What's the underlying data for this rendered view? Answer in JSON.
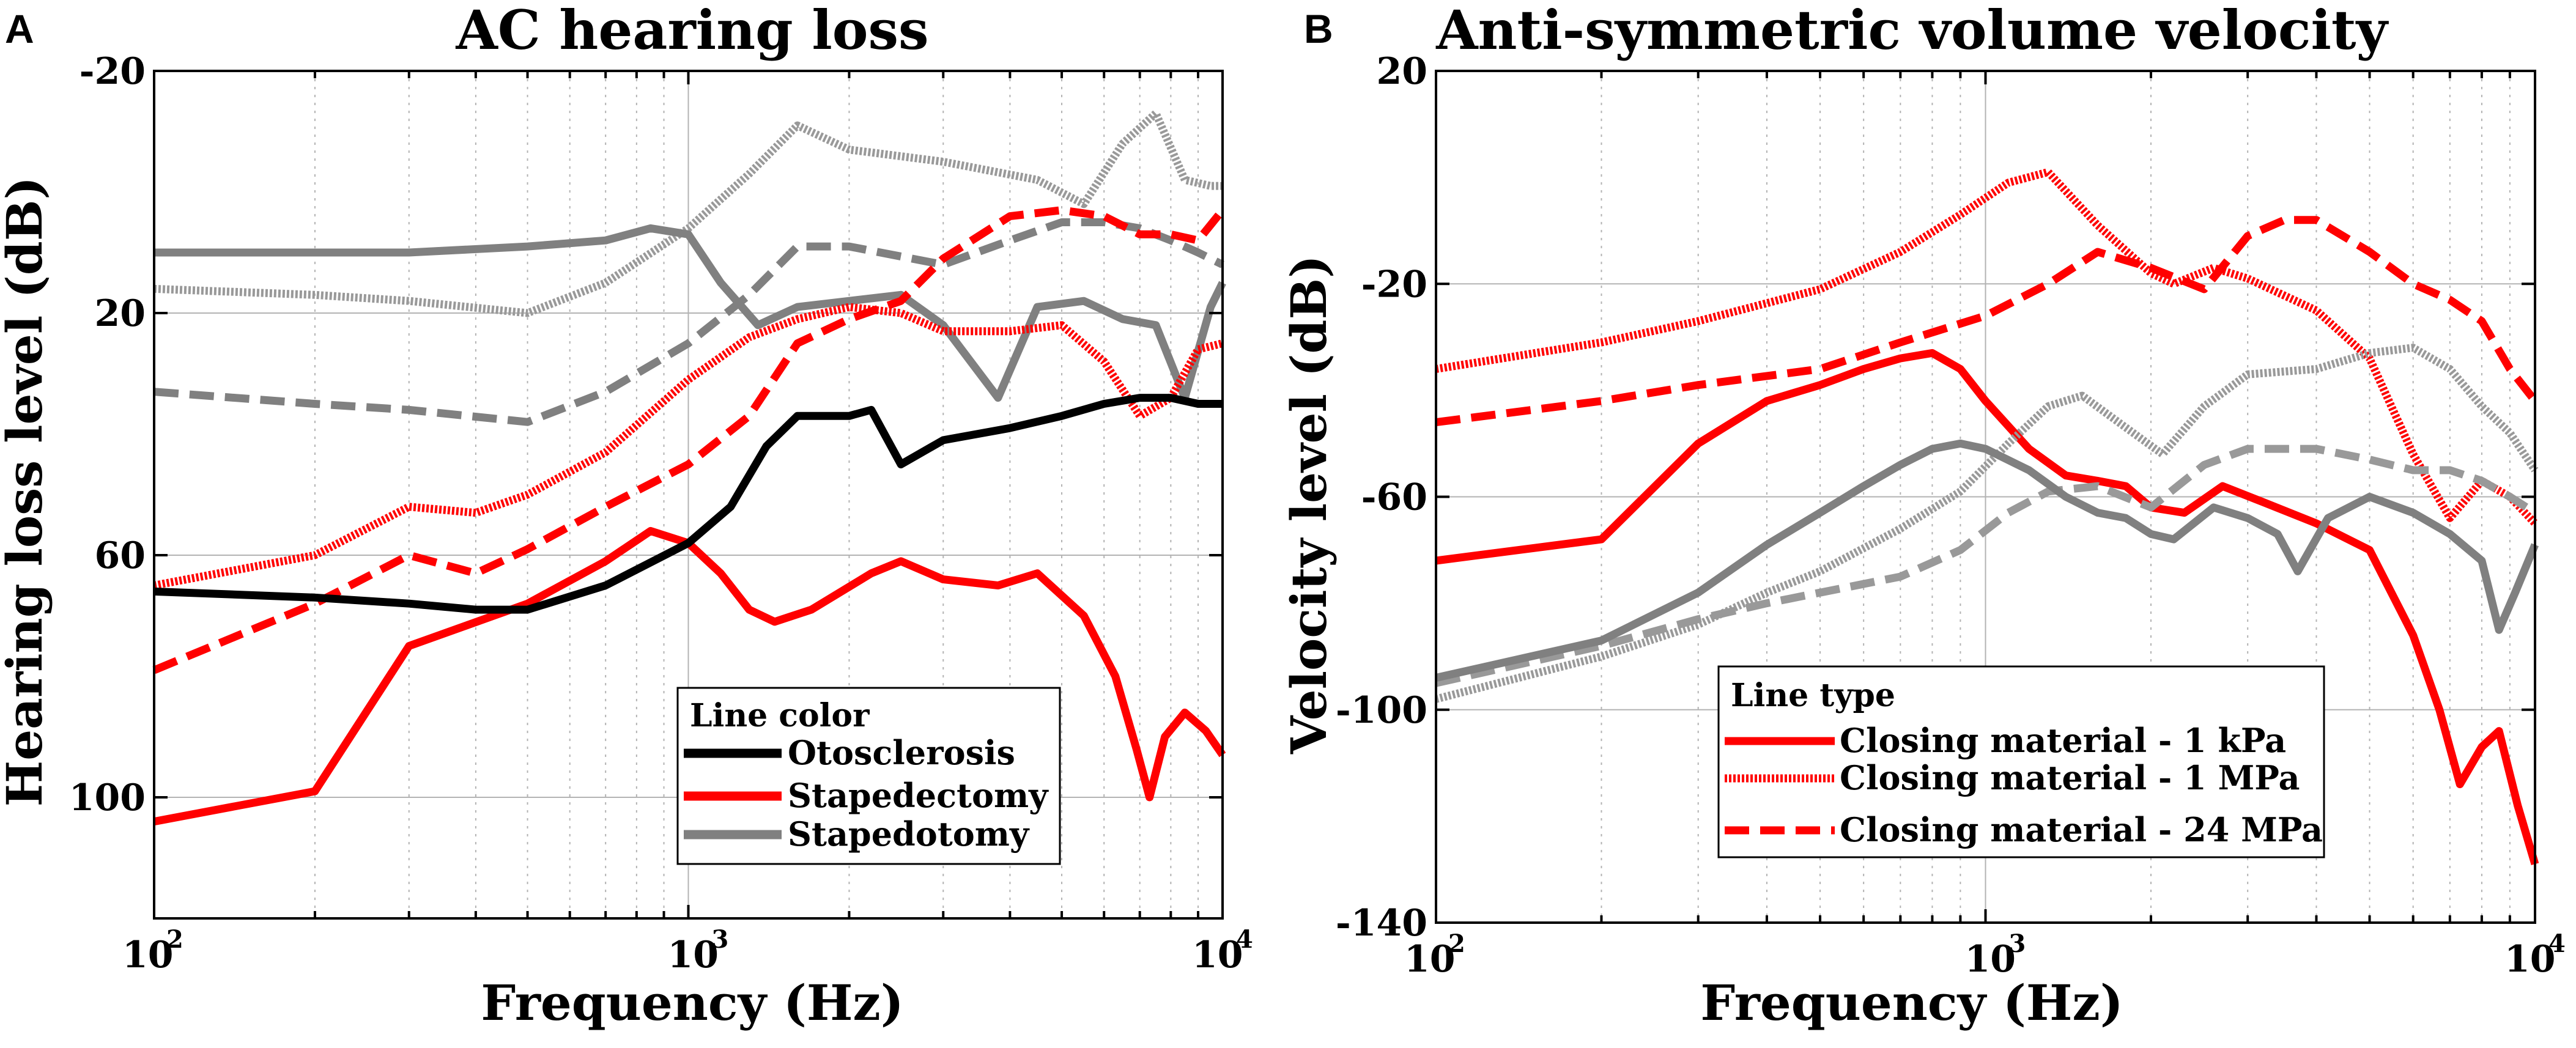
{
  "panels": [
    {
      "panel_label": "A",
      "chart_data": {
        "type": "line",
        "title": "AC hearing loss",
        "xlabel": "Frequency (Hz)",
        "ylabel": "Hearing loss level (dB)",
        "xscale": "log",
        "xlim": [
          100,
          10000
        ],
        "ylim": [
          -20,
          120
        ],
        "y_reversed": true,
        "yticks": [
          -20,
          20,
          60,
          100
        ],
        "xticks": [
          {
            "base": "10",
            "exp": "2",
            "value": 100
          },
          {
            "base": "10",
            "exp": "3",
            "value": 1000
          },
          {
            "base": "10",
            "exp": "4",
            "value": 10000
          }
        ],
        "legend": {
          "title": "Line color",
          "position": "lower-right",
          "entries": [
            {
              "label": "Otosclerosis",
              "color": "#000000",
              "style": "solid"
            },
            {
              "label": "Stapedectomy",
              "color": "#ff0000",
              "style": "solid"
            },
            {
              "label": "Stapedotomy",
              "color": "#808080",
              "style": "solid"
            }
          ]
        },
        "series": [
          {
            "name": "Stapedotomy dotted",
            "color": "#999999",
            "style": "dotted",
            "x": [
              100,
              200,
              300,
              500,
              700,
              1000,
              1300,
              1600,
              2000,
              3000,
              4500,
              5500,
              6500,
              7500,
              8500,
              9500,
              10000
            ],
            "y": [
              16,
              17,
              18,
              20,
              15,
              6,
              -3,
              -11,
              -7,
              -5,
              -2,
              2,
              -8,
              -13,
              -2,
              -1,
              -1
            ]
          },
          {
            "name": "Stapedotomy dashed",
            "color": "#808080",
            "style": "dashed",
            "x": [
              100,
              200,
              300,
              500,
              700,
              1000,
              1300,
              1600,
              2000,
              3000,
              4000,
              5000,
              6000,
              7000,
              8000,
              9000,
              10000
            ],
            "y": [
              33,
              35,
              36,
              38,
              33,
              25,
              17,
              9,
              9,
              12,
              8,
              5,
              5,
              6,
              8,
              10,
              12
            ]
          },
          {
            "name": "Stapedotomy solid",
            "color": "#808080",
            "style": "solid",
            "x": [
              100,
              200,
              300,
              500,
              700,
              850,
              1000,
              1150,
              1350,
              1600,
              2000,
              2500,
              3000,
              3800,
              4500,
              5500,
              6500,
              7500,
              8500,
              9500,
              10000
            ],
            "y": [
              10,
              10,
              10,
              9,
              8,
              6,
              7,
              15,
              22,
              19,
              18,
              17,
              22,
              34,
              19,
              18,
              21,
              22,
              34,
              19,
              15
            ]
          },
          {
            "name": "Stapedectomy dotted",
            "color": "#ff0000",
            "style": "dotted",
            "x": [
              100,
              200,
              300,
              400,
              500,
              700,
              1000,
              1300,
              1600,
              2000,
              2500,
              3000,
              4000,
              5000,
              6000,
              7000,
              8000,
              9000,
              10000
            ],
            "y": [
              65,
              60,
              52,
              53,
              50,
              43,
              31,
              24,
              21,
              19,
              20,
              23,
              23,
              22,
              28,
              37,
              34,
              26,
              25
            ]
          },
          {
            "name": "Stapedectomy dashed",
            "color": "#ff0000",
            "style": "dashed",
            "x": [
              100,
              200,
              300,
              400,
              500,
              700,
              1000,
              1300,
              1600,
              2000,
              2500,
              3000,
              4000,
              5000,
              6000,
              7000,
              8000,
              9000,
              10000
            ],
            "y": [
              79,
              68,
              60,
              63,
              59,
              52,
              45,
              37,
              25,
              21,
              18,
              11,
              4,
              3,
              4,
              7,
              7,
              8,
              3
            ]
          },
          {
            "name": "Stapedectomy solid",
            "color": "#ff0000",
            "style": "solid",
            "x": [
              100,
              200,
              300,
              500,
              700,
              850,
              1000,
              1150,
              1300,
              1450,
              1700,
              2200,
              2500,
              3000,
              3800,
              4500,
              5500,
              6300,
              6900,
              7300,
              7800,
              8500,
              9300,
              10000
            ],
            "y": [
              104,
              99,
              75,
              68,
              61,
              56,
              58,
              63,
              69,
              71,
              69,
              63,
              61,
              64,
              65,
              63,
              70,
              80,
              92,
              100,
              90,
              86,
              89,
              93
            ]
          },
          {
            "name": "Otosclerosis",
            "color": "#000000",
            "style": "solid",
            "x": [
              100,
              200,
              300,
              400,
              500,
              700,
              1000,
              1200,
              1400,
              1600,
              1800,
              2000,
              2200,
              2500,
              3000,
              4000,
              5000,
              6000,
              7000,
              8000,
              9000,
              10000
            ],
            "y": [
              66,
              67,
              68,
              69,
              69,
              65,
              58,
              52,
              42,
              37,
              37,
              37,
              36,
              45,
              41,
              39,
              37,
              35,
              34,
              34,
              35,
              35
            ]
          }
        ]
      }
    },
    {
      "panel_label": "B",
      "chart_data": {
        "type": "line",
        "title": "Anti-symmetric volume velocity",
        "xlabel": "Frequency (Hz)",
        "ylabel": "Velocity level (dB)",
        "xscale": "log",
        "xlim": [
          100,
          10000
        ],
        "ylim": [
          -140,
          20
        ],
        "y_reversed": false,
        "yticks": [
          -140,
          -100,
          -60,
          -20,
          20
        ],
        "xticks": [
          {
            "base": "10",
            "exp": "2",
            "value": 100
          },
          {
            "base": "10",
            "exp": "3",
            "value": 1000
          },
          {
            "base": "10",
            "exp": "4",
            "value": 10000
          }
        ],
        "legend": {
          "title": "Line type",
          "position": "lower-right",
          "entries": [
            {
              "label": "Closing material - 1 kPa",
              "color": "#ff0000",
              "style": "solid"
            },
            {
              "label": "Closing material - 1 MPa",
              "color": "#ff0000",
              "style": "dotted"
            },
            {
              "label": "Closing material - 24 MPa",
              "color": "#ff0000",
              "style": "dashed"
            }
          ]
        },
        "series": [
          {
            "name": "Red dotted (1 MPa)",
            "color": "#ff0000",
            "style": "dotted",
            "x": [
              100,
              200,
              300,
              500,
              700,
              900,
              1100,
              1300,
              1600,
              2000,
              2200,
              2600,
              3000,
              4000,
              5000,
              6000,
              7000,
              8000,
              9000,
              10000
            ],
            "y": [
              -36,
              -31,
              -27,
              -21,
              -14,
              -7,
              -1,
              1,
              -9,
              -18,
              -20,
              -17,
              -19,
              -25,
              -34,
              -52,
              -64,
              -57,
              -60,
              -65
            ]
          },
          {
            "name": "Red dashed (24 MPa)",
            "color": "#ff0000",
            "style": "dashed",
            "x": [
              100,
              200,
              300,
              500,
              700,
              1000,
              1300,
              1600,
              2000,
              2500,
              3000,
              3500,
              4000,
              5000,
              6000,
              7000,
              8000,
              9000,
              10000
            ],
            "y": [
              -46,
              -42,
              -39,
              -36,
              -31,
              -26,
              -20,
              -14,
              -17,
              -21,
              -11,
              -8,
              -8,
              -14,
              -20,
              -23,
              -27,
              -36,
              -42
            ]
          },
          {
            "name": "Red solid (1 kPa)",
            "color": "#ff0000",
            "style": "solid",
            "x": [
              100,
              200,
              300,
              400,
              500,
              600,
              700,
              800,
              900,
              1000,
              1200,
              1400,
              1600,
              1800,
              2000,
              2300,
              2700,
              3200,
              4000,
              5000,
              6000,
              6700,
              7300,
              8000,
              8600,
              9300,
              10000
            ],
            "y": [
              -72,
              -68,
              -50,
              -42,
              -39,
              -36,
              -34,
              -33,
              -36,
              -42,
              -51,
              -56,
              -57,
              -58,
              -62,
              -63,
              -58,
              -61,
              -65,
              -70,
              -86,
              -100,
              -114,
              -107,
              -104,
              -118,
              -129
            ]
          },
          {
            "name": "Gray dotted",
            "color": "#999999",
            "style": "dotted",
            "x": [
              100,
              200,
              300,
              400,
              500,
              700,
              900,
              1100,
              1300,
              1500,
              1800,
              2100,
              2500,
              3000,
              4000,
              5000,
              6000,
              7000,
              8000,
              9000,
              10000
            ],
            "y": [
              -98,
              -90,
              -84,
              -78,
              -74,
              -66,
              -59,
              -50,
              -43,
              -41,
              -47,
              -52,
              -43,
              -37,
              -36,
              -33,
              -32,
              -36,
              -43,
              -48,
              -55
            ]
          },
          {
            "name": "Gray dashed",
            "color": "#999999",
            "style": "dashed",
            "x": [
              100,
              200,
              300,
              400,
              500,
              700,
              900,
              1100,
              1300,
              1600,
              2000,
              2500,
              3000,
              4000,
              5000,
              6000,
              7000,
              8000,
              9000,
              10000
            ],
            "y": [
              -95,
              -88,
              -83,
              -80,
              -78,
              -75,
              -70,
              -63,
              -59,
              -58,
              -62,
              -54,
              -51,
              -51,
              -53,
              -55,
              -55,
              -57,
              -60,
              -63
            ]
          },
          {
            "name": "Gray solid",
            "color": "#808080",
            "style": "solid",
            "x": [
              100,
              200,
              300,
              400,
              500,
              600,
              700,
              800,
              900,
              1000,
              1200,
              1400,
              1600,
              1800,
              2000,
              2200,
              2600,
              3000,
              3400,
              3700,
              4200,
              5000,
              6000,
              7000,
              8000,
              8600,
              9200,
              10000
            ],
            "y": [
              -94,
              -87,
              -78,
              -69,
              -63,
              -58,
              -54,
              -51,
              -50,
              -51,
              -55,
              -60,
              -63,
              -64,
              -67,
              -68,
              -62,
              -64,
              -67,
              -74,
              -64,
              -60,
              -63,
              -67,
              -72,
              -85,
              -78,
              -69
            ]
          }
        ]
      }
    }
  ]
}
